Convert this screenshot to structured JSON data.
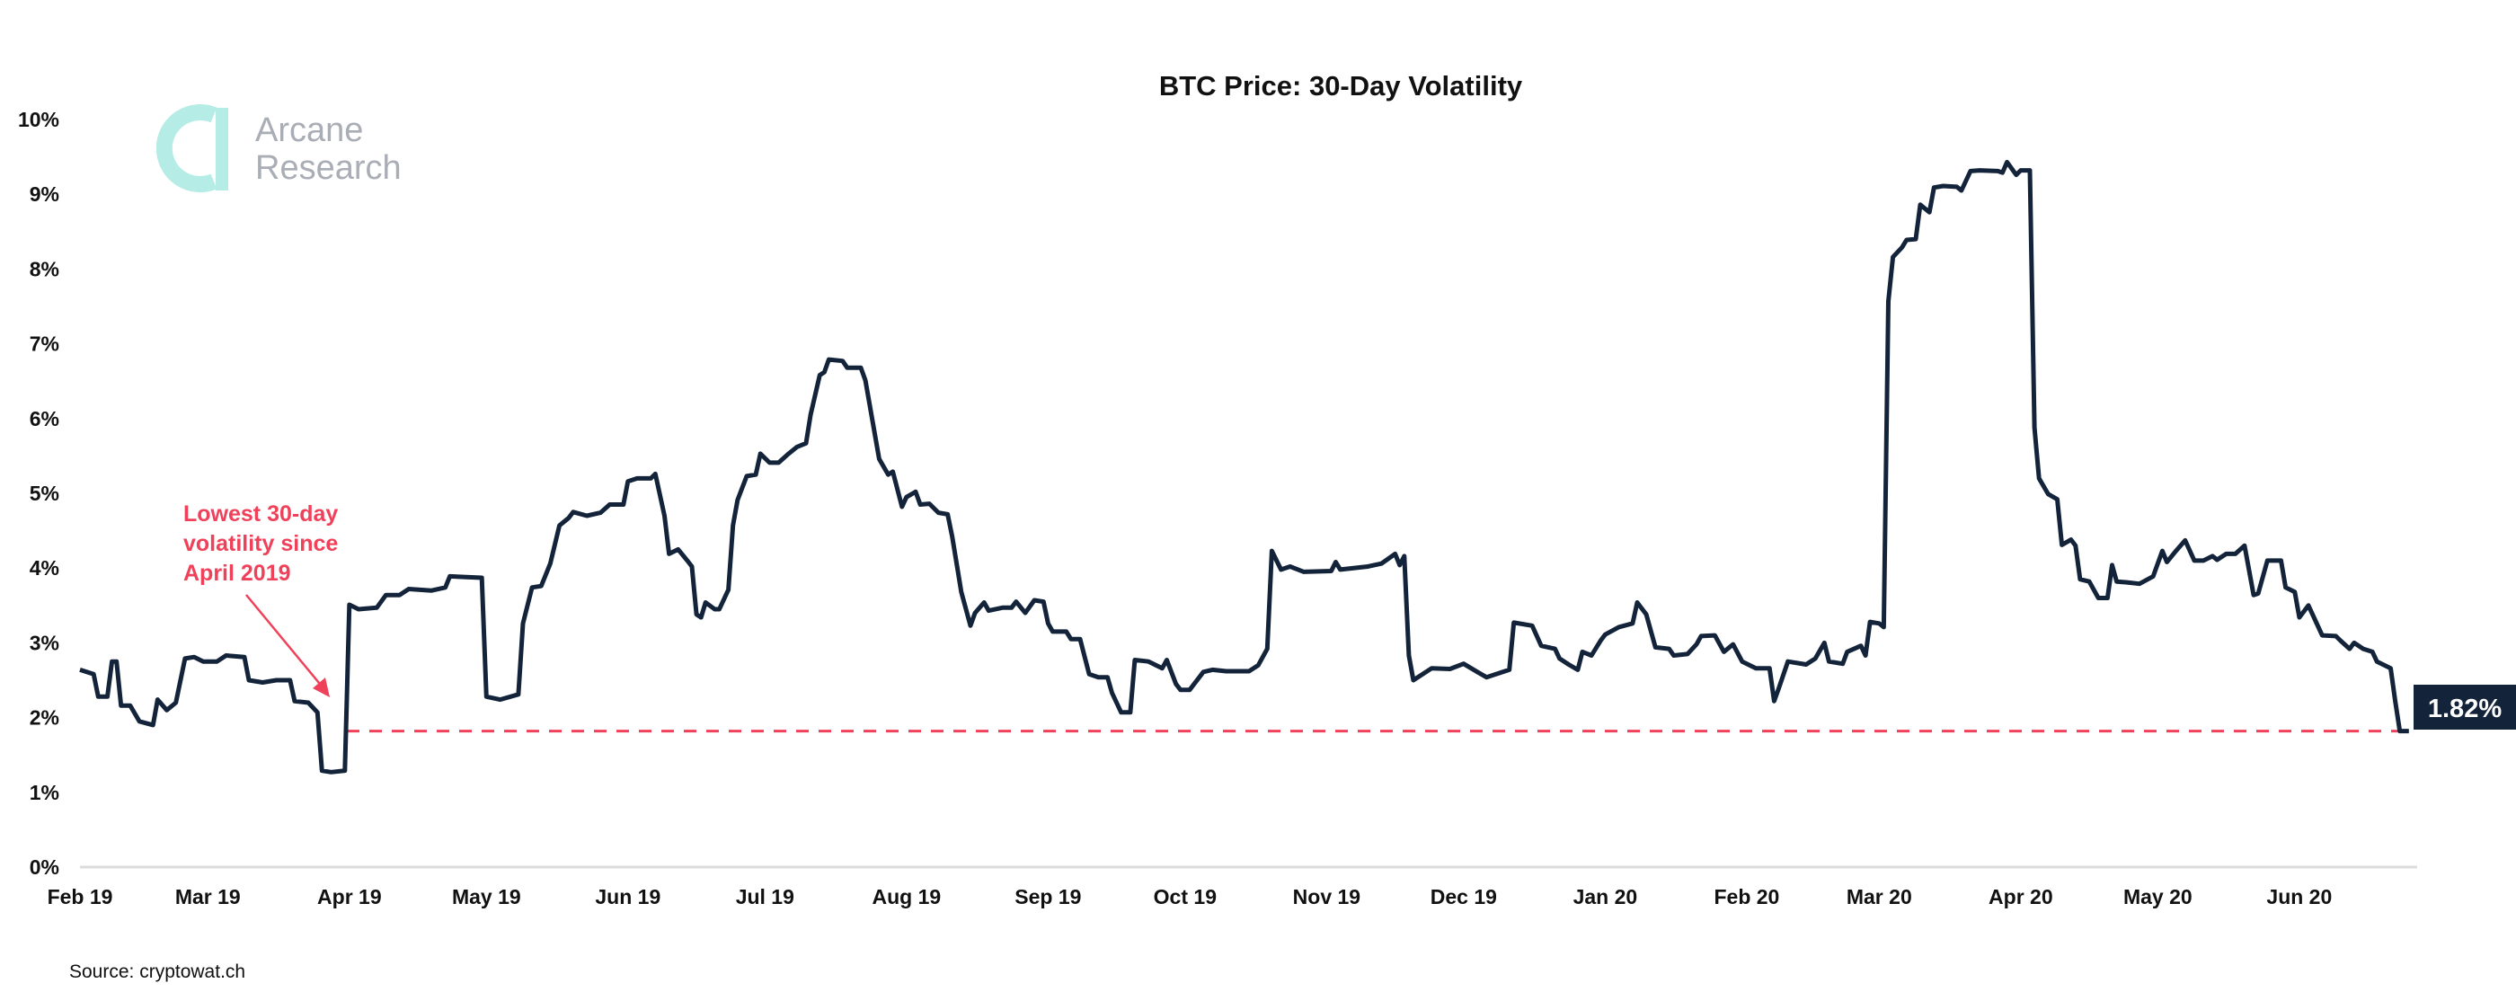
{
  "chart_data": {
    "type": "line",
    "title": "BTC Price: 30-Day Volatility",
    "xlabel": "",
    "ylabel": "",
    "ylim": [
      0,
      10
    ],
    "yticks": [
      "0%",
      "1%",
      "2%",
      "3%",
      "4%",
      "5%",
      "6%",
      "7%",
      "8%",
      "9%",
      "10%"
    ],
    "xticks": [
      {
        "date": "2019-02-01",
        "label": "Feb 19"
      },
      {
        "date": "2019-03-01",
        "label": "Mar 19"
      },
      {
        "date": "2019-04-01",
        "label": "Apr 19"
      },
      {
        "date": "2019-05-01",
        "label": "May 19"
      },
      {
        "date": "2019-06-01",
        "label": "Jun 19"
      },
      {
        "date": "2019-07-01",
        "label": "Jul 19"
      },
      {
        "date": "2019-08-01",
        "label": "Aug 19"
      },
      {
        "date": "2019-09-01",
        "label": "Sep 19"
      },
      {
        "date": "2019-10-01",
        "label": "Oct 19"
      },
      {
        "date": "2019-11-01",
        "label": "Nov 19"
      },
      {
        "date": "2019-12-01",
        "label": "Dec 19"
      },
      {
        "date": "2020-01-01",
        "label": "Jan 20"
      },
      {
        "date": "2020-02-01",
        "label": "Feb 20"
      },
      {
        "date": "2020-03-01",
        "label": "Mar 20"
      },
      {
        "date": "2020-04-01",
        "label": "Apr 20"
      },
      {
        "date": "2020-05-01",
        "label": "May 20"
      },
      {
        "date": "2020-06-01",
        "label": "Jun 20"
      }
    ],
    "grid": false,
    "line_color": "#13233a",
    "reference_line": {
      "value": 1.82,
      "color": "#f0415a",
      "style": "dashed"
    },
    "end_label": "1.82%",
    "annotation": {
      "lines": [
        "Lowest 30-day",
        "volatility since",
        "April 2019"
      ],
      "color": "#f0415a"
    },
    "source": "Source: cryptowat.ch",
    "series": [
      {
        "points": [
          [
            "2019-02-01",
            2.64
          ],
          [
            "2019-02-04",
            2.58
          ],
          [
            "2019-02-05",
            2.28
          ],
          [
            "2019-02-07",
            2.28
          ],
          [
            "2019-02-08",
            2.75
          ],
          [
            "2019-02-09",
            2.75
          ],
          [
            "2019-02-10",
            2.16
          ],
          [
            "2019-02-12",
            2.16
          ],
          [
            "2019-02-14",
            1.95
          ],
          [
            "2019-02-17",
            1.9
          ],
          [
            "2019-02-18",
            2.24
          ],
          [
            "2019-02-20",
            2.1
          ],
          [
            "2019-02-22",
            2.2
          ],
          [
            "2019-02-24",
            2.79
          ],
          [
            "2019-02-26",
            2.81
          ],
          [
            "2019-02-28",
            2.75
          ],
          [
            "2019-03-03",
            2.75
          ],
          [
            "2019-03-05",
            2.83
          ],
          [
            "2019-03-09",
            2.81
          ],
          [
            "2019-03-10",
            2.5
          ],
          [
            "2019-03-13",
            2.47
          ],
          [
            "2019-03-16",
            2.5
          ],
          [
            "2019-03-19",
            2.5
          ],
          [
            "2019-03-20",
            2.22
          ],
          [
            "2019-03-23",
            2.2
          ],
          [
            "2019-03-25",
            2.07
          ],
          [
            "2019-03-26",
            1.29
          ],
          [
            "2019-03-28",
            1.27
          ],
          [
            "2019-03-31",
            1.29
          ],
          [
            "2019-04-01",
            3.51
          ],
          [
            "2019-04-03",
            3.45
          ],
          [
            "2019-04-07",
            3.47
          ],
          [
            "2019-04-09",
            3.64
          ],
          [
            "2019-04-12",
            3.64
          ],
          [
            "2019-04-14",
            3.72
          ],
          [
            "2019-04-19",
            3.7
          ],
          [
            "2019-04-22",
            3.74
          ],
          [
            "2019-04-23",
            3.89
          ],
          [
            "2019-04-30",
            3.87
          ],
          [
            "2019-05-01",
            2.28
          ],
          [
            "2019-05-04",
            2.24
          ],
          [
            "2019-05-08",
            2.31
          ],
          [
            "2019-05-09",
            3.26
          ],
          [
            "2019-05-11",
            3.74
          ],
          [
            "2019-05-13",
            3.76
          ],
          [
            "2019-05-15",
            4.06
          ],
          [
            "2019-05-17",
            4.57
          ],
          [
            "2019-05-19",
            4.67
          ],
          [
            "2019-05-20",
            4.75
          ],
          [
            "2019-05-23",
            4.7
          ],
          [
            "2019-05-26",
            4.74
          ],
          [
            "2019-05-28",
            4.85
          ],
          [
            "2019-05-31",
            4.85
          ],
          [
            "2019-06-01",
            5.16
          ],
          [
            "2019-06-03",
            5.2
          ],
          [
            "2019-06-06",
            5.2
          ],
          [
            "2019-06-07",
            5.26
          ],
          [
            "2019-06-09",
            4.7
          ],
          [
            "2019-06-10",
            4.19
          ],
          [
            "2019-06-12",
            4.25
          ],
          [
            "2019-06-14",
            4.1
          ],
          [
            "2019-06-15",
            4.02
          ],
          [
            "2019-06-16",
            3.38
          ],
          [
            "2019-06-17",
            3.34
          ],
          [
            "2019-06-18",
            3.54
          ],
          [
            "2019-06-20",
            3.45
          ],
          [
            "2019-06-21",
            3.45
          ],
          [
            "2019-06-23",
            3.71
          ],
          [
            "2019-06-24",
            4.57
          ],
          [
            "2019-06-25",
            4.91
          ],
          [
            "2019-06-27",
            5.23
          ],
          [
            "2019-06-29",
            5.25
          ],
          [
            "2019-06-30",
            5.53
          ],
          [
            "2019-07-02",
            5.41
          ],
          [
            "2019-07-04",
            5.41
          ],
          [
            "2019-07-06",
            5.52
          ],
          [
            "2019-07-08",
            5.62
          ],
          [
            "2019-07-10",
            5.67
          ],
          [
            "2019-07-11",
            6.05
          ],
          [
            "2019-07-13",
            6.58
          ],
          [
            "2019-07-14",
            6.62
          ],
          [
            "2019-07-15",
            6.79
          ],
          [
            "2019-07-18",
            6.77
          ],
          [
            "2019-07-19",
            6.68
          ],
          [
            "2019-07-22",
            6.68
          ],
          [
            "2019-07-23",
            6.51
          ],
          [
            "2019-07-26",
            5.46
          ],
          [
            "2019-07-28",
            5.25
          ],
          [
            "2019-07-29",
            5.29
          ],
          [
            "2019-07-31",
            4.82
          ],
          [
            "2019-08-01",
            4.95
          ],
          [
            "2019-08-03",
            5.02
          ],
          [
            "2019-08-04",
            4.85
          ],
          [
            "2019-08-06",
            4.86
          ],
          [
            "2019-08-08",
            4.74
          ],
          [
            "2019-08-10",
            4.72
          ],
          [
            "2019-08-11",
            4.42
          ],
          [
            "2019-08-13",
            3.68
          ],
          [
            "2019-08-15",
            3.23
          ],
          [
            "2019-08-16",
            3.4
          ],
          [
            "2019-08-18",
            3.54
          ],
          [
            "2019-08-19",
            3.43
          ],
          [
            "2019-08-22",
            3.47
          ],
          [
            "2019-08-24",
            3.47
          ],
          [
            "2019-08-25",
            3.55
          ],
          [
            "2019-08-27",
            3.4
          ],
          [
            "2019-08-29",
            3.57
          ],
          [
            "2019-08-31",
            3.55
          ],
          [
            "2019-09-01",
            3.26
          ],
          [
            "2019-09-02",
            3.15
          ],
          [
            "2019-09-05",
            3.15
          ],
          [
            "2019-09-06",
            3.05
          ],
          [
            "2019-09-08",
            3.05
          ],
          [
            "2019-09-10",
            2.58
          ],
          [
            "2019-09-12",
            2.54
          ],
          [
            "2019-09-14",
            2.54
          ],
          [
            "2019-09-15",
            2.33
          ],
          [
            "2019-09-17",
            2.07
          ],
          [
            "2019-09-19",
            2.07
          ],
          [
            "2019-09-20",
            2.77
          ],
          [
            "2019-09-23",
            2.75
          ],
          [
            "2019-09-26",
            2.66
          ],
          [
            "2019-09-27",
            2.77
          ],
          [
            "2019-09-29",
            2.45
          ],
          [
            "2019-09-30",
            2.37
          ],
          [
            "2019-10-02",
            2.37
          ],
          [
            "2019-10-05",
            2.61
          ],
          [
            "2019-10-07",
            2.64
          ],
          [
            "2019-10-10",
            2.62
          ],
          [
            "2019-10-15",
            2.62
          ],
          [
            "2019-10-17",
            2.7
          ],
          [
            "2019-10-19",
            2.92
          ],
          [
            "2019-10-20",
            4.23
          ],
          [
            "2019-10-22",
            3.98
          ],
          [
            "2019-10-24",
            4.02
          ],
          [
            "2019-10-27",
            3.95
          ],
          [
            "2019-11-02",
            3.96
          ],
          [
            "2019-11-03",
            4.08
          ],
          [
            "2019-11-04",
            3.98
          ],
          [
            "2019-11-10",
            4.02
          ],
          [
            "2019-11-13",
            4.06
          ],
          [
            "2019-11-16",
            4.19
          ],
          [
            "2019-11-17",
            4.04
          ],
          [
            "2019-11-18",
            4.16
          ],
          [
            "2019-11-19",
            2.83
          ],
          [
            "2019-11-20",
            2.5
          ],
          [
            "2019-11-24",
            2.66
          ],
          [
            "2019-11-28",
            2.65
          ],
          [
            "2019-12-01",
            2.72
          ],
          [
            "2019-12-04",
            2.61
          ],
          [
            "2019-12-06",
            2.54
          ],
          [
            "2019-12-11",
            2.64
          ],
          [
            "2019-12-12",
            3.27
          ],
          [
            "2019-12-16",
            3.23
          ],
          [
            "2019-12-18",
            2.96
          ],
          [
            "2019-12-21",
            2.92
          ],
          [
            "2019-12-22",
            2.79
          ],
          [
            "2019-12-24",
            2.71
          ],
          [
            "2019-12-26",
            2.64
          ],
          [
            "2019-12-27",
            2.88
          ],
          [
            "2019-12-29",
            2.83
          ],
          [
            "2019-12-31",
            3.03
          ],
          [
            "2020-01-01",
            3.11
          ],
          [
            "2020-01-04",
            3.21
          ],
          [
            "2020-01-07",
            3.26
          ],
          [
            "2020-01-08",
            3.54
          ],
          [
            "2020-01-10",
            3.38
          ],
          [
            "2020-01-12",
            2.94
          ],
          [
            "2020-01-15",
            2.92
          ],
          [
            "2020-01-16",
            2.83
          ],
          [
            "2020-01-19",
            2.85
          ],
          [
            "2020-01-21",
            2.98
          ],
          [
            "2020-01-22",
            3.09
          ],
          [
            "2020-01-25",
            3.1
          ],
          [
            "2020-01-27",
            2.88
          ],
          [
            "2020-01-29",
            2.98
          ],
          [
            "2020-01-31",
            2.75
          ],
          [
            "2020-02-03",
            2.66
          ],
          [
            "2020-02-06",
            2.66
          ],
          [
            "2020-02-07",
            2.22
          ],
          [
            "2020-02-08",
            2.39
          ],
          [
            "2020-02-10",
            2.75
          ],
          [
            "2020-02-14",
            2.71
          ],
          [
            "2020-02-16",
            2.79
          ],
          [
            "2020-02-18",
            3.0
          ],
          [
            "2020-02-19",
            2.75
          ],
          [
            "2020-02-22",
            2.72
          ],
          [
            "2020-02-23",
            2.88
          ],
          [
            "2020-02-26",
            2.96
          ],
          [
            "2020-02-27",
            2.83
          ],
          [
            "2020-02-28",
            3.28
          ],
          [
            "2020-03-01",
            3.26
          ],
          [
            "2020-03-02",
            3.21
          ],
          [
            "2020-03-03",
            7.57
          ],
          [
            "2020-03-04",
            8.16
          ],
          [
            "2020-03-06",
            8.29
          ],
          [
            "2020-03-07",
            8.39
          ],
          [
            "2020-03-09",
            8.4
          ],
          [
            "2020-03-10",
            8.86
          ],
          [
            "2020-03-12",
            8.76
          ],
          [
            "2020-03-13",
            9.09
          ],
          [
            "2020-03-15",
            9.11
          ],
          [
            "2020-03-18",
            9.1
          ],
          [
            "2020-03-19",
            9.05
          ],
          [
            "2020-03-21",
            9.31
          ],
          [
            "2020-03-23",
            9.32
          ],
          [
            "2020-03-27",
            9.31
          ],
          [
            "2020-03-28",
            9.29
          ],
          [
            "2020-03-29",
            9.43
          ],
          [
            "2020-03-31",
            9.26
          ],
          [
            "2020-04-01",
            9.32
          ],
          [
            "2020-04-03",
            9.32
          ],
          [
            "2020-04-04",
            5.88
          ],
          [
            "2020-04-05",
            5.2
          ],
          [
            "2020-04-07",
            4.99
          ],
          [
            "2020-04-09",
            4.92
          ],
          [
            "2020-04-10",
            4.31
          ],
          [
            "2020-04-12",
            4.38
          ],
          [
            "2020-04-13",
            4.3
          ],
          [
            "2020-04-14",
            3.85
          ],
          [
            "2020-04-16",
            3.82
          ],
          [
            "2020-04-18",
            3.6
          ],
          [
            "2020-04-20",
            3.6
          ],
          [
            "2020-04-21",
            4.04
          ],
          [
            "2020-04-22",
            3.82
          ],
          [
            "2020-04-24",
            3.81
          ],
          [
            "2020-04-27",
            3.79
          ],
          [
            "2020-04-30",
            3.89
          ],
          [
            "2020-05-02",
            4.23
          ],
          [
            "2020-05-03",
            4.08
          ],
          [
            "2020-05-05",
            4.23
          ],
          [
            "2020-05-07",
            4.37
          ],
          [
            "2020-05-09",
            4.1
          ],
          [
            "2020-05-11",
            4.1
          ],
          [
            "2020-05-13",
            4.16
          ],
          [
            "2020-05-14",
            4.11
          ],
          [
            "2020-05-16",
            4.19
          ],
          [
            "2020-05-18",
            4.19
          ],
          [
            "2020-05-20",
            4.3
          ],
          [
            "2020-05-22",
            3.64
          ],
          [
            "2020-05-23",
            3.66
          ],
          [
            "2020-05-25",
            4.1
          ],
          [
            "2020-05-28",
            4.1
          ],
          [
            "2020-05-29",
            3.74
          ],
          [
            "2020-05-31",
            3.68
          ],
          [
            "2020-06-01",
            3.34
          ],
          [
            "2020-06-03",
            3.5
          ],
          [
            "2020-06-06",
            3.1
          ],
          [
            "2020-06-09",
            3.09
          ],
          [
            "2020-06-10",
            3.03
          ],
          [
            "2020-06-12",
            2.92
          ],
          [
            "2020-06-13",
            3.0
          ],
          [
            "2020-06-15",
            2.92
          ],
          [
            "2020-06-17",
            2.88
          ],
          [
            "2020-06-18",
            2.75
          ],
          [
            "2020-06-21",
            2.66
          ],
          [
            "2020-06-22",
            2.22
          ],
          [
            "2020-06-23",
            1.82
          ],
          [
            "2020-06-25",
            1.82
          ]
        ]
      }
    ]
  },
  "logo": {
    "line1": "Arcane",
    "line2": "Research",
    "color": "#b5ece6"
  }
}
